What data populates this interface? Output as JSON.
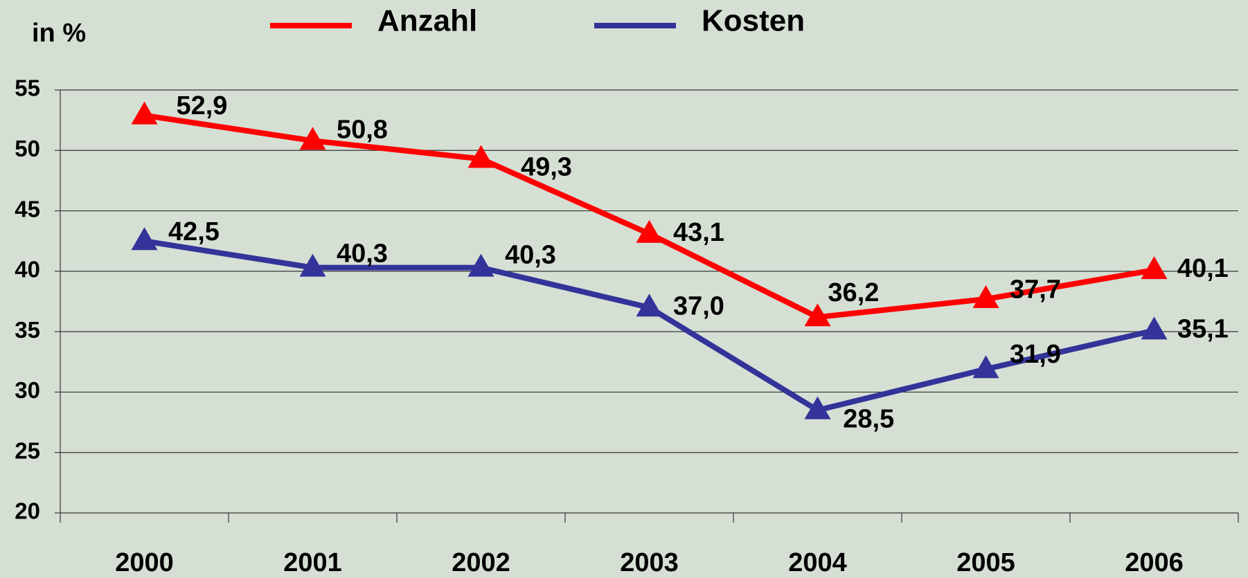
{
  "chart_data": {
    "type": "line",
    "y_unit_label": "in %",
    "categories": [
      "2000",
      "2001",
      "2002",
      "2003",
      "2004",
      "2005",
      "2006"
    ],
    "series": [
      {
        "name": "Anzahl",
        "color": "#ff0000",
        "values": [
          52.9,
          50.8,
          49.3,
          43.1,
          36.2,
          37.7,
          40.1
        ],
        "value_labels": [
          "52,9",
          "50,8",
          "49,3",
          "43,1",
          "36,2",
          "37,7",
          "40,1"
        ]
      },
      {
        "name": "Kosten",
        "color": "#333399",
        "values": [
          42.5,
          40.3,
          40.3,
          37.0,
          28.5,
          31.9,
          35.1
        ],
        "value_labels": [
          "42,5",
          "40,3",
          "40,3",
          "37,0",
          "28,5",
          "31,9",
          "35,1"
        ]
      }
    ],
    "ylim": [
      20,
      55
    ],
    "yticks": [
      20,
      25,
      30,
      35,
      40,
      45,
      50,
      55
    ],
    "grid": true,
    "legend": "top"
  }
}
